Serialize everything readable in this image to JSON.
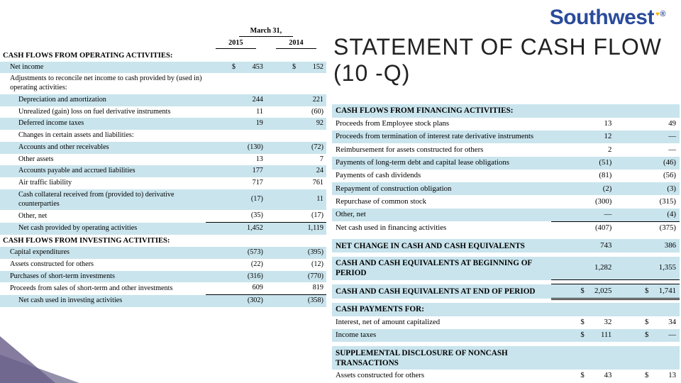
{
  "brand": {
    "name": "Southwest",
    "heart": "♥",
    "reg": "®",
    "color_primary": "#2a4b9b",
    "color_accent": "#f9b612"
  },
  "title": "STATEMENT OF CASH FLOW (10 -Q)",
  "colors": {
    "stripe": "#c9e4ed",
    "text": "#000000",
    "background": "#ffffff"
  },
  "left": {
    "header_date": "March 31,",
    "years": [
      "2015",
      "2014"
    ],
    "sections": [
      {
        "head": "CASH FLOWS FROM OPERATING ACTIVITIES:",
        "rows": [
          {
            "label": "Net income",
            "v": [
              "453",
              "152"
            ],
            "stripe": true,
            "indent": 1,
            "dollar_left": true,
            "dollar_right": true
          },
          {
            "label": "Adjustments to reconcile net income to cash provided by (used in) operating activities:",
            "v": [
              "",
              ""
            ],
            "indent": 1
          },
          {
            "label": "Depreciation and amortization",
            "v": [
              "244",
              "221"
            ],
            "stripe": true,
            "indent": 2
          },
          {
            "label": "Unrealized (gain) loss on fuel derivative instruments",
            "v": [
              "11",
              "(60)"
            ],
            "indent": 2
          },
          {
            "label": "Deferred income taxes",
            "v": [
              "19",
              "92"
            ],
            "stripe": true,
            "indent": 2
          },
          {
            "label": "Changes in certain assets and liabilities:",
            "v": [
              "",
              ""
            ],
            "indent": 2
          },
          {
            "label": "Accounts and other receivables",
            "v": [
              "(130)",
              "(72)"
            ],
            "stripe": true,
            "indent": 2
          },
          {
            "label": "Other assets",
            "v": [
              "13",
              "7"
            ],
            "indent": 2
          },
          {
            "label": "Accounts payable and accrued liabilities",
            "v": [
              "177",
              "24"
            ],
            "stripe": true,
            "indent": 2
          },
          {
            "label": "Air traffic liability",
            "v": [
              "717",
              "761"
            ],
            "indent": 2
          },
          {
            "label": "Cash collateral received from (provided to) derivative counterparties",
            "v": [
              "(17)",
              "11"
            ],
            "stripe": true,
            "indent": 2
          },
          {
            "label": "Other, net",
            "v": [
              "(35)",
              "(17)"
            ],
            "indent": 2
          },
          {
            "label": "Net cash provided by operating activities",
            "v": [
              "1,452",
              "1,119"
            ],
            "stripe": true,
            "indent": 2,
            "subtotal": true
          }
        ]
      },
      {
        "head": "CASH FLOWS FROM INVESTING ACTIVITIES:",
        "rows": [
          {
            "label": "Capital expenditures",
            "v": [
              "(573)",
              "(395)"
            ],
            "stripe": true,
            "indent": 1
          },
          {
            "label": "Assets constructed for others",
            "v": [
              "(22)",
              "(12)"
            ],
            "indent": 1
          },
          {
            "label": "Purchases of short-term investments",
            "v": [
              "(316)",
              "(770)"
            ],
            "stripe": true,
            "indent": 1
          },
          {
            "label": "Proceeds from sales of short-term and other investments",
            "v": [
              "609",
              "819"
            ],
            "indent": 1
          },
          {
            "label": "Net cash used in investing activities",
            "v": [
              "(302)",
              "(358)"
            ],
            "stripe": true,
            "indent": 2,
            "subtotal": true
          }
        ]
      }
    ]
  },
  "right": {
    "sections": [
      {
        "head": "CASH FLOWS FROM FINANCING ACTIVITIES:",
        "head_stripe": true,
        "rows": [
          {
            "label": "Proceeds from Employee stock plans",
            "v": [
              "13",
              "49"
            ],
            "indent": 1
          },
          {
            "label": "Proceeds from termination of interest rate derivative instruments",
            "v": [
              "12",
              "—"
            ],
            "stripe": true,
            "indent": 1
          },
          {
            "label": "Reimbursement for assets constructed for others",
            "v": [
              "2",
              "—"
            ],
            "indent": 1
          },
          {
            "label": "Payments of long-term debt and capital lease obligations",
            "v": [
              "(51)",
              "(46)"
            ],
            "stripe": true,
            "indent": 1
          },
          {
            "label": "Payments of cash dividends",
            "v": [
              "(81)",
              "(56)"
            ],
            "indent": 1
          },
          {
            "label": "Repayment of construction obligation",
            "v": [
              "(2)",
              "(3)"
            ],
            "stripe": true,
            "indent": 1
          },
          {
            "label": "Repurchase of common stock",
            "v": [
              "(300)",
              "(315)"
            ],
            "indent": 1
          },
          {
            "label": "Other, net",
            "v": [
              "—",
              "(4)"
            ],
            "stripe": true,
            "indent": 1
          },
          {
            "label": "Net cash used in financing activities",
            "v": [
              "(407)",
              "(375)"
            ],
            "indent": 2,
            "subtotal": true
          }
        ]
      },
      {
        "head": "NET CHANGE IN CASH AND CASH EQUIVALENTS",
        "head_stripe": true,
        "head_vals": [
          "743",
          "386"
        ],
        "gap_before": true
      },
      {
        "head": "CASH AND CASH EQUIVALENTS AT BEGINNING OF PERIOD",
        "head_stripe": true,
        "head_vals": [
          "1,282",
          "1,355"
        ],
        "gap_before": true,
        "underline_vals": true
      },
      {
        "head": "CASH AND CASH EQUIVALENTS AT END OF PERIOD",
        "head_stripe": true,
        "head_vals": [
          "2,025",
          "1,741"
        ],
        "gap_before": true,
        "dollar": true,
        "double_rule": true
      },
      {
        "head": "CASH PAYMENTS FOR:",
        "head_stripe": true,
        "gap_before": true,
        "rows": [
          {
            "label": "Interest, net of amount capitalized",
            "v": [
              "32",
              "34"
            ],
            "indent": 1,
            "dollar_left": true,
            "dollar_right": true
          },
          {
            "label": "Income taxes",
            "v": [
              "111",
              "—"
            ],
            "stripe": true,
            "indent": 1,
            "dollar_left": true,
            "dollar_right": true
          }
        ]
      },
      {
        "head": "SUPPLEMENTAL DISCLOSURE OF NONCASH TRANSACTIONS",
        "head_stripe": true,
        "gap_before": true,
        "rows": [
          {
            "label": "Assets constructed for others",
            "v": [
              "43",
              "13"
            ],
            "indent": 1,
            "dollar_left": true,
            "dollar_right": true
          }
        ]
      }
    ]
  }
}
